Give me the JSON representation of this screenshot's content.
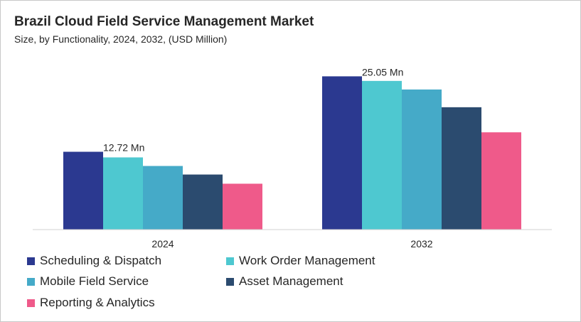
{
  "title": "Brazil Cloud Field Service Management Market",
  "subtitle": "Size, by Functionality, 2024, 2032, (USD Million)",
  "chart_data": {
    "type": "bar",
    "categories": [
      "2024",
      "2032"
    ],
    "series": [
      {
        "name": "Scheduling & Dispatch",
        "color": "#2b3990",
        "values": [
          12.72,
          25.05
        ]
      },
      {
        "name": "Work Order Management",
        "color": "#4ec8d0",
        "values": [
          11.8,
          24.3
        ]
      },
      {
        "name": "Mobile Field Service",
        "color": "#45aac8",
        "values": [
          10.4,
          22.9
        ]
      },
      {
        "name": "Asset Management",
        "color": "#2b4b6f",
        "values": [
          9.0,
          20.0
        ]
      },
      {
        "name": "Reporting & Analytics",
        "color": "#ef5a8a",
        "values": [
          7.5,
          15.9
        ]
      }
    ],
    "data_labels": [
      {
        "category": "2024",
        "text": "12.72 Mn"
      },
      {
        "category": "2032",
        "text": "25.05 Mn"
      }
    ],
    "ylim": [
      0,
      28
    ],
    "grid": false,
    "legend_position": "bottom-left"
  }
}
